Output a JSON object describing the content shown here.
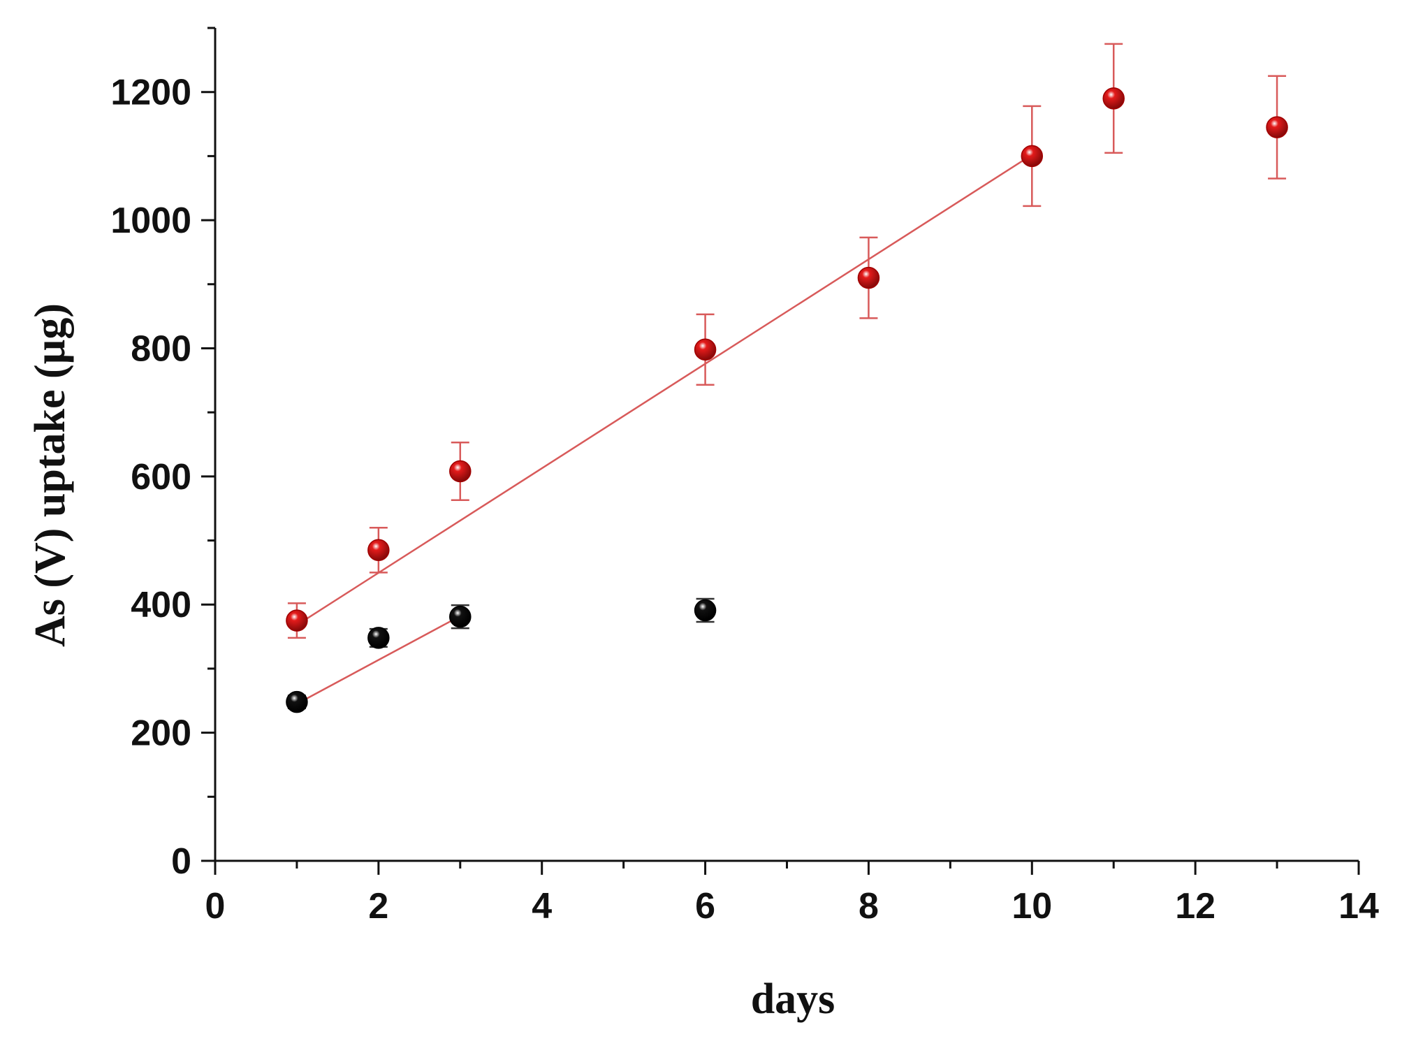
{
  "chart_data": {
    "type": "scatter",
    "title": "",
    "xlabel": "days",
    "ylabel": "As (V) uptake (µg)",
    "xlim": [
      0,
      14
    ],
    "ylim": [
      0,
      1300
    ],
    "x_ticks": [
      0,
      2,
      4,
      6,
      8,
      10,
      12,
      14
    ],
    "x_tick_labels": [
      "0",
      "2",
      "4",
      "6",
      "8",
      "10",
      "12",
      "14"
    ],
    "y_ticks": [
      0,
      200,
      400,
      600,
      800,
      1000,
      1200
    ],
    "y_tick_labels": [
      "0",
      "200",
      "400",
      "600",
      "800",
      "1000",
      "1200"
    ],
    "grid": false,
    "series": [
      {
        "name": "red",
        "color": "#e31b1b",
        "x": [
          1,
          2,
          3,
          6,
          8,
          10,
          11,
          13
        ],
        "y": [
          375,
          485,
          608,
          798,
          910,
          1100,
          1190,
          1145
        ],
        "error": [
          27,
          35,
          45,
          55,
          63,
          78,
          85,
          80
        ],
        "fit_line": {
          "x": [
            1,
            10
          ],
          "y": [
            368,
            1102
          ],
          "color": "#d85a5a"
        }
      },
      {
        "name": "black",
        "color": "#111111",
        "x": [
          1,
          2,
          3,
          6
        ],
        "y": [
          248,
          348,
          381,
          391
        ],
        "error": [
          10,
          14,
          18,
          18
        ],
        "fit_line": {
          "x": [
            1,
            3
          ],
          "y": [
            245,
            382
          ],
          "color": "#d85a5a"
        }
      }
    ]
  }
}
